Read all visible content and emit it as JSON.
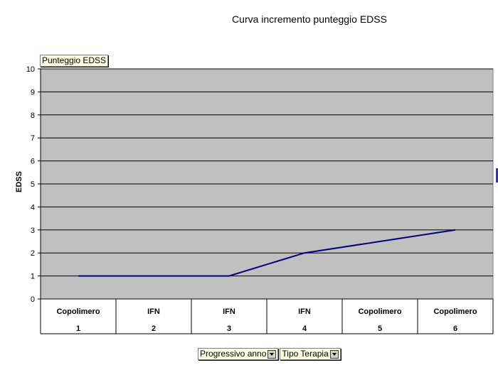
{
  "chart_data": {
    "type": "line",
    "title": "Curva incremento punteggio EDSS",
    "ylabel": "EDSS",
    "ylim": [
      0,
      10
    ],
    "yticks": [
      "0",
      "1",
      "2",
      "3",
      "4",
      "5",
      "6",
      "7",
      "8",
      "9",
      "10"
    ],
    "categories": [
      {
        "top": "Copolimero",
        "bottom": "1"
      },
      {
        "top": "IFN",
        "bottom": "2"
      },
      {
        "top": "IFN",
        "bottom": "3"
      },
      {
        "top": "IFN",
        "bottom": "4"
      },
      {
        "top": "Copolimero",
        "bottom": "5"
      },
      {
        "top": "Copolimero",
        "bottom": "6"
      }
    ],
    "series": [
      {
        "values": [
          1,
          1,
          1,
          2,
          2.5,
          3
        ],
        "color": "#000080"
      }
    ],
    "plot_background": "#c0c0c0",
    "grid": true
  },
  "pivot": {
    "data_field": "Punteggio EDSS",
    "row_fields": [
      "Progressivo anno",
      "Tipo Terapia"
    ]
  }
}
